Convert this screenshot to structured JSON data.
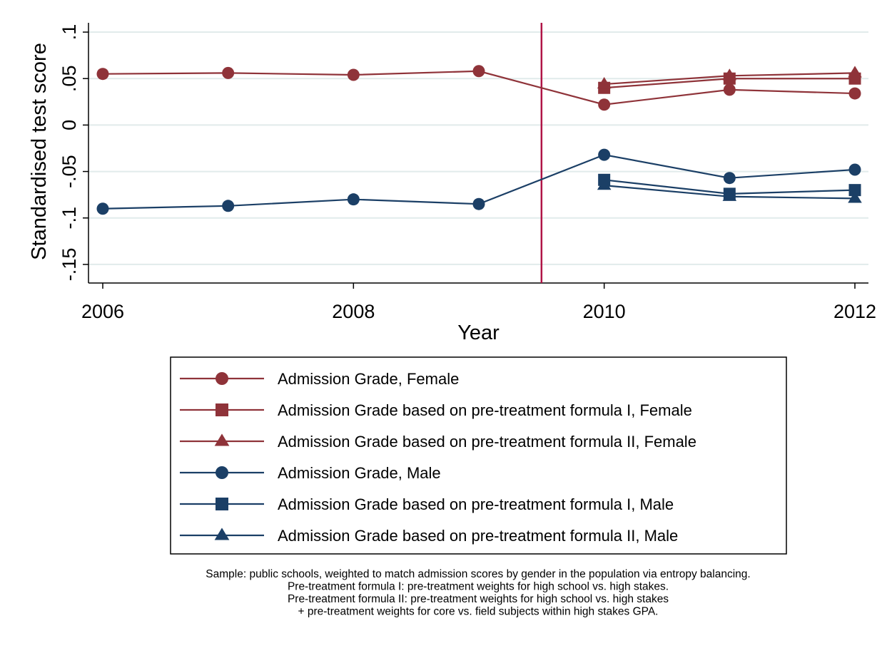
{
  "chart_data": {
    "type": "line",
    "xlabel": "Year",
    "ylabel": "Standardised test score",
    "xlim": [
      2006,
      2012
    ],
    "ylim": [
      -0.17,
      0.11
    ],
    "x_ticks": [
      2006,
      2008,
      2010,
      2012
    ],
    "y_ticks": [
      -0.15,
      -0.1,
      -0.05,
      0,
      0.05,
      0.1
    ],
    "y_tick_labels": [
      "-.15",
      "-.1",
      "-.05",
      "0",
      ".05",
      ".1"
    ],
    "grid": true,
    "treatment_line_x": 2009.5,
    "treatment_line_color": "#b01446",
    "legend_position": "bottom",
    "series": [
      {
        "name": "Admission Grade, Female",
        "color": "#8f3339",
        "marker": "circle",
        "x": [
          2006,
          2007,
          2008,
          2009,
          2010,
          2011,
          2012
        ],
        "y": [
          0.055,
          0.056,
          0.054,
          0.058,
          0.022,
          0.038,
          0.034
        ]
      },
      {
        "name": "Admission Grade based on pre-treatment formula I, Female",
        "color": "#8f3339",
        "marker": "square",
        "x": [
          2010,
          2011,
          2012
        ],
        "y": [
          0.04,
          0.05,
          0.05
        ]
      },
      {
        "name": "Admission Grade based on pre-treatment formula II, Female",
        "color": "#8f3339",
        "marker": "triangle",
        "x": [
          2010,
          2011,
          2012
        ],
        "y": [
          0.044,
          0.053,
          0.056
        ]
      },
      {
        "name": "Admission Grade, Male",
        "color": "#1b3f66",
        "marker": "circle",
        "x": [
          2006,
          2007,
          2008,
          2009,
          2010,
          2011,
          2012
        ],
        "y": [
          -0.09,
          -0.087,
          -0.08,
          -0.085,
          -0.032,
          -0.057,
          -0.048
        ]
      },
      {
        "name": "Admission Grade based on pre-treatment formula I, Male",
        "color": "#1b3f66",
        "marker": "square",
        "x": [
          2010,
          2011,
          2012
        ],
        "y": [
          -0.059,
          -0.074,
          -0.07
        ]
      },
      {
        "name": "Admission Grade based on pre-treatment formula II, Male",
        "color": "#1b3f66",
        "marker": "triangle",
        "x": [
          2010,
          2011,
          2012
        ],
        "y": [
          -0.065,
          -0.077,
          -0.079
        ]
      }
    ]
  },
  "note": {
    "lines": [
      "Sample: public schools, weighted to match admission scores by gender in the population via entropy balancing.",
      "Pre-treatment formula I: pre-treatment weights for high school vs. high stakes.",
      "Pre-treatment formula II: pre-treatment weights for high school vs. high stakes",
      "+ pre-treatment weights for core vs. field subjects within high stakes GPA."
    ]
  }
}
